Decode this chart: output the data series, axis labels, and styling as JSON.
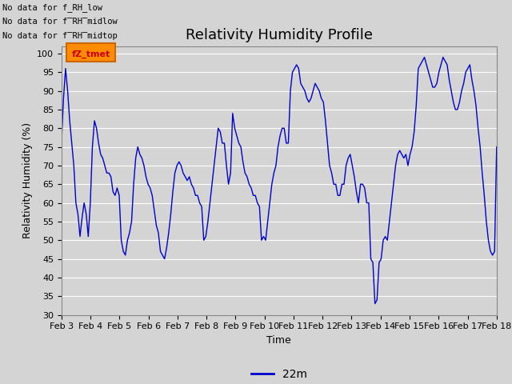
{
  "title": "Relativity Humidity Profile",
  "ylabel": "Relativity Humidity (%)",
  "xlabel": "Time",
  "legend_label": "22m",
  "ylim": [
    30,
    102
  ],
  "yticks": [
    30,
    35,
    40,
    45,
    50,
    55,
    60,
    65,
    70,
    75,
    80,
    85,
    90,
    95,
    100
  ],
  "xtick_labels": [
    "Feb 3",
    "Feb 4",
    "Feb 5",
    "Feb 6",
    "Feb 7",
    "Feb 8",
    "Feb 9",
    "Feb 10",
    "Feb 11",
    "Feb 12",
    "Feb 13",
    "Feb 14",
    "Feb 15",
    "Feb 16",
    "Feb 17",
    "Feb 18"
  ],
  "no_data_texts": [
    "No data for f_RH_low",
    "No data for f̅RH̅midlow",
    "No data for f̅RH̅midtop"
  ],
  "fz_tmet_label": "fZ_tmet",
  "line_color": "#0000cc",
  "fz_box_facecolor": "#ff8c00",
  "fz_box_edgecolor": "#cc6600",
  "fz_text_color": "#cc0000",
  "title_fontsize": 13,
  "axis_label_fontsize": 9,
  "tick_fontsize": 8,
  "humidity_data": [
    76,
    88,
    96,
    90,
    82,
    76,
    70,
    60,
    57,
    51,
    56,
    60,
    57,
    51,
    60,
    75,
    82,
    80,
    76,
    73,
    72,
    70,
    68,
    68,
    67,
    63,
    62,
    64,
    62,
    50,
    47,
    46,
    50,
    52,
    55,
    65,
    72,
    75,
    73,
    72,
    70,
    67,
    65,
    64,
    62,
    58,
    54,
    52,
    47,
    46,
    45,
    48,
    52,
    57,
    63,
    68,
    70,
    71,
    70,
    68,
    67,
    66,
    67,
    65,
    64,
    62,
    62,
    60,
    59,
    50,
    51,
    55,
    60,
    65,
    70,
    75,
    80,
    79,
    76,
    76,
    70,
    65,
    68,
    84,
    80,
    78,
    76,
    75,
    71,
    68,
    67,
    65,
    64,
    62,
    62,
    60,
    59,
    50,
    51,
    50,
    55,
    60,
    65,
    68,
    70,
    75,
    78,
    80,
    80,
    76,
    76,
    90,
    95,
    96,
    97,
    96,
    92,
    91,
    90,
    88,
    87,
    88,
    90,
    92,
    91,
    90,
    88,
    87,
    82,
    76,
    70,
    68,
    65,
    65,
    62,
    62,
    65,
    65,
    70,
    72,
    73,
    70,
    67,
    63,
    60,
    65,
    65,
    64,
    60,
    60,
    45,
    44,
    33,
    34,
    44,
    45,
    50,
    51,
    50,
    55,
    60,
    65,
    70,
    73,
    74,
    73,
    72,
    73,
    70,
    73,
    75,
    79,
    86,
    96,
    97,
    98,
    99,
    97,
    95,
    93,
    91,
    91,
    92,
    95,
    97,
    99,
    98,
    97,
    93,
    90,
    87,
    85,
    85,
    87,
    90,
    92,
    95,
    96,
    97,
    93,
    90,
    86,
    80,
    75,
    68,
    62,
    55,
    50,
    47,
    46,
    47,
    75
  ]
}
